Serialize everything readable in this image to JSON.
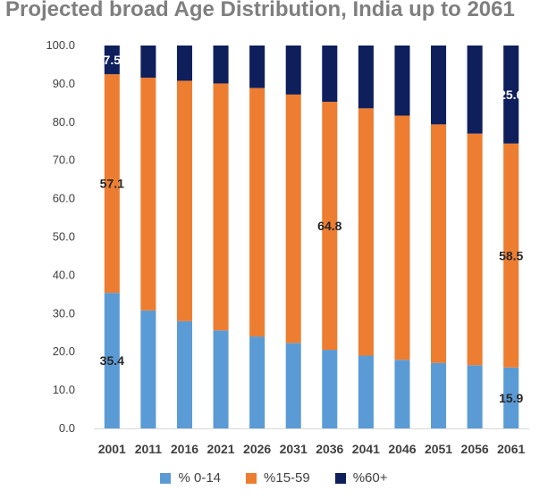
{
  "title": "Projected broad Age Distribution, India up to 2061",
  "chart_data": {
    "type": "bar",
    "stacked": true,
    "categories": [
      "2001",
      "2011",
      "2016",
      "2021",
      "2026",
      "2031",
      "2036",
      "2041",
      "2046",
      "2051",
      "2056",
      "2061"
    ],
    "series": [
      {
        "name": "% 0-14",
        "color": "#5b9bd5",
        "values": [
          35.4,
          30.8,
          28.0,
          25.6,
          24.0,
          22.3,
          20.5,
          19.0,
          17.9,
          17.1,
          16.5,
          15.9
        ]
      },
      {
        "name": "%15-59",
        "color": "#ed7d31",
        "values": [
          57.1,
          60.8,
          62.8,
          64.5,
          64.9,
          64.9,
          64.8,
          64.6,
          63.8,
          62.3,
          60.5,
          58.5
        ]
      },
      {
        "name": "%60+",
        "color": "#0e1f5c",
        "values": [
          7.5,
          8.4,
          9.2,
          9.9,
          11.1,
          12.8,
          14.7,
          16.4,
          18.3,
          20.6,
          23.0,
          25.6
        ]
      }
    ],
    "data_labels": [
      {
        "category": "2001",
        "series": "%60+",
        "text": "7.5",
        "color": "#ffffff"
      },
      {
        "category": "2001",
        "series": "%15-59",
        "text": "57.1",
        "color": "#262626"
      },
      {
        "category": "2001",
        "series": "% 0-14",
        "text": "35.4",
        "color": "#262626"
      },
      {
        "category": "2036",
        "series": "%15-59",
        "text": "64.8",
        "color": "#262626"
      },
      {
        "category": "2061",
        "series": "%60+",
        "text": "25.6",
        "color": "#ffffff"
      },
      {
        "category": "2061",
        "series": "%15-59",
        "text": "58.5",
        "color": "#262626"
      },
      {
        "category": "2061",
        "series": "% 0-14",
        "text": "15.9",
        "color": "#262626"
      }
    ],
    "ylim": [
      0,
      100
    ],
    "yticks": [
      "0.0",
      "10.0",
      "20.0",
      "30.0",
      "40.0",
      "50.0",
      "60.0",
      "70.0",
      "80.0",
      "90.0",
      "100.0"
    ],
    "xlabel": "",
    "ylabel": "",
    "grid": false,
    "legend_position": "bottom"
  }
}
